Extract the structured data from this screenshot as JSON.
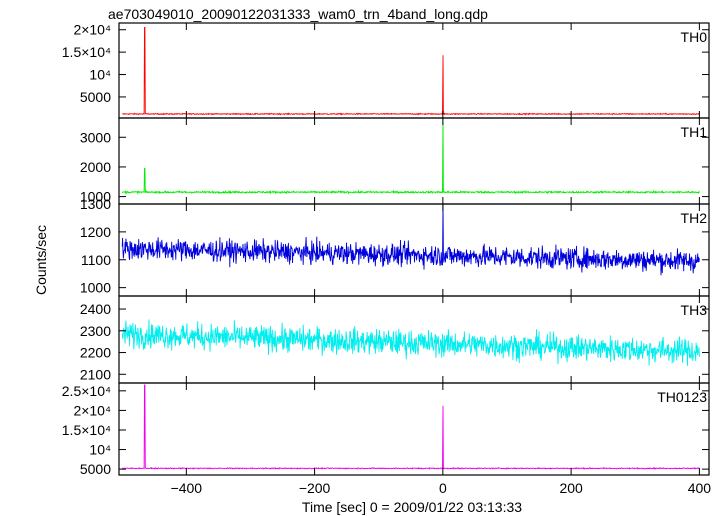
{
  "title": "ae703049010_20090122031333_wam0_trn_4band_long.qdp",
  "chart_data": {
    "type": "line",
    "title": "ae703049010_20090122031333_wam0_trn_4band_long.qdp",
    "xlabel": "Time [sec] 0 = 2009/01/22 03:13:33",
    "ylabel": "Counts/sec",
    "xlim": [
      -505,
      415
    ],
    "x_ticks": [
      -400,
      -200,
      0,
      200,
      400
    ],
    "x_tick_labels": [
      "−400",
      "−200",
      "0",
      "200",
      "400"
    ],
    "grid": false,
    "panels": [
      {
        "name": "TH0",
        "color": "#ff0000",
        "ylim": [
          300,
          21500
        ],
        "y_ticks": [
          5000,
          10000,
          15000,
          20000
        ],
        "y_tick_labels": [
          "5000",
          "10⁴",
          "1.5×10⁴",
          "2×10⁴"
        ],
        "baseline": 1200,
        "noise": 80,
        "spikes": [
          {
            "x": -465,
            "y": 20500
          },
          {
            "x": 0,
            "y": 14300
          }
        ]
      },
      {
        "name": "TH1",
        "color": "#00ee00",
        "ylim": [
          750,
          3650
        ],
        "y_ticks": [
          1000,
          2000,
          3000
        ],
        "y_tick_labels": [
          "1000",
          "2000",
          "3000"
        ],
        "baseline": 1150,
        "noise": 20,
        "spikes": [
          {
            "x": -465,
            "y": 1950
          },
          {
            "x": 0,
            "y": 3650
          }
        ]
      },
      {
        "name": "TH2",
        "color": "#0000dd",
        "ylim": [
          970,
          1300
        ],
        "y_ticks": [
          1000,
          1100,
          1200,
          1300
        ],
        "y_tick_labels": [
          "1000",
          "1100",
          "1200",
          "1300"
        ],
        "baseline_start": 1140,
        "baseline_end": 1095,
        "noise": 28,
        "spikes": [
          {
            "x": 0,
            "y": 1300
          }
        ]
      },
      {
        "name": "TH3",
        "color": "#00eeee",
        "ylim": [
          2060,
          2460
        ],
        "y_ticks": [
          2100,
          2200,
          2300,
          2400
        ],
        "y_tick_labels": [
          "2100",
          "2200",
          "2300",
          "2400"
        ],
        "baseline_start": 2285,
        "baseline_end": 2205,
        "noise": 42,
        "spikes": []
      },
      {
        "name": "TH0123",
        "color": "#ee00ee",
        "ylim": [
          3500,
          27000
        ],
        "y_ticks": [
          5000,
          10000,
          15000,
          20000,
          25000
        ],
        "y_tick_labels": [
          "5000",
          "10⁴",
          "1.5×10⁴",
          "2×10⁴",
          "2.5×10⁴"
        ],
        "baseline": 5200,
        "noise": 90,
        "spikes": [
          {
            "x": -465,
            "y": 26500
          },
          {
            "x": 0,
            "y": 21200
          }
        ]
      }
    ]
  }
}
